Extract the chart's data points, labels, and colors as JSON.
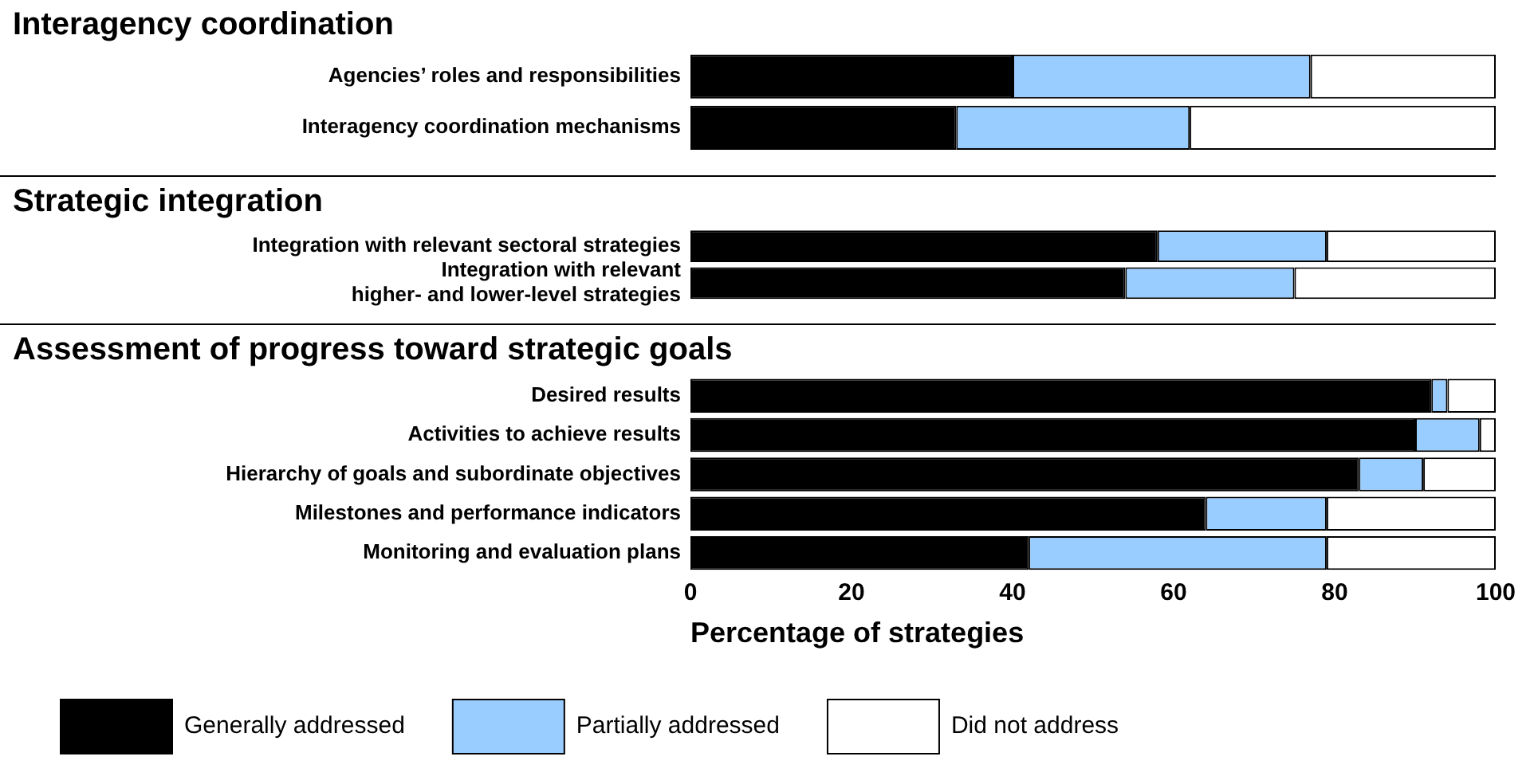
{
  "chart_data": [
    {
      "type": "bar",
      "orientation": "horizontal",
      "stacked": true,
      "title": "Interagency coordination",
      "categories": [
        "Agencies’ roles and responsibilities",
        "Interagency coordination mechanisms"
      ],
      "xlim": [
        0,
        100
      ],
      "tick_labels": "y",
      "legend": false,
      "series": [
        {
          "color": "#000000",
          "values": [
            40,
            33
          ]
        },
        {
          "color": "#99ccff",
          "values": [
            37,
            29
          ]
        },
        {
          "color": "#ffffff",
          "values": [
            23,
            38
          ]
        }
      ]
    },
    {
      "type": "bar",
      "orientation": "horizontal",
      "stacked": true,
      "title": "Strategic integration",
      "categories": [
        "Integration with relevant sectoral strategies",
        "Integration with relevant\nhigher- and lower-level strategies"
      ],
      "xlim": [
        0,
        100
      ],
      "tick_labels": "y",
      "legend": false,
      "series": [
        {
          "color": "#000000",
          "values": [
            58,
            54
          ]
        },
        {
          "color": "#99ccff",
          "values": [
            21,
            21
          ]
        },
        {
          "color": "#ffffff",
          "values": [
            21,
            25
          ]
        }
      ]
    },
    {
      "type": "bar",
      "orientation": "horizontal",
      "stacked": true,
      "title": "Assessment of progress toward strategic goals",
      "categories": [
        "Desired results",
        "Activities to achieve results",
        "Hierarchy of goals and subordinate objectives",
        "Milestones and performance indicators",
        "Monitoring and evaluation plans"
      ],
      "xlim": [
        0,
        100
      ],
      "xticks": [
        0,
        20,
        40,
        60,
        80,
        100
      ],
      "xlabel": "Percentage of strategies",
      "legend": "bottom",
      "series": [
        {
          "name": "Generally addressed",
          "color": "#000000",
          "values": [
            92,
            90,
            83,
            64,
            42
          ]
        },
        {
          "name": "Partially addressed",
          "color": "#99ccff",
          "values": [
            2,
            8,
            8,
            15,
            37
          ]
        },
        {
          "name": "Did not address",
          "color": "#ffffff",
          "values": [
            6,
            2,
            9,
            21,
            21
          ]
        }
      ]
    }
  ]
}
